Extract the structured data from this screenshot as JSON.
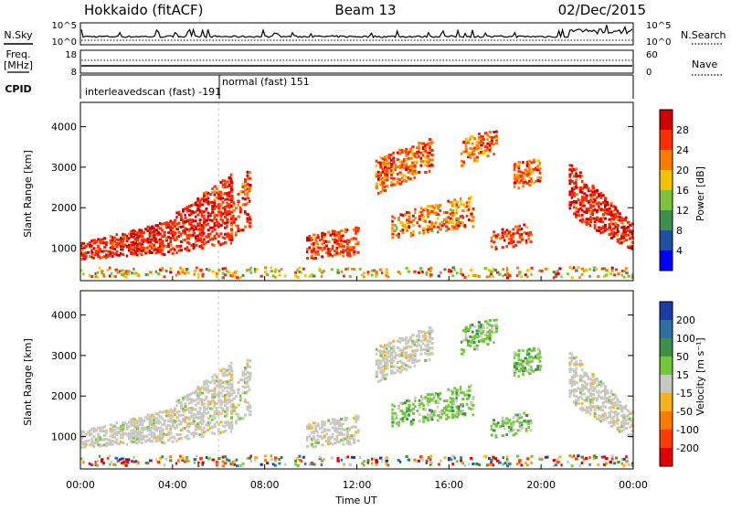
{
  "header": {
    "station": "Hokkaido (fitACF)",
    "beam": "Beam 13",
    "date": "02/Dec/2015"
  },
  "left_labels": {
    "nsky": "N.Sky",
    "freq": "Freq.",
    "freq_unit": "[MHz]",
    "cpid": "CPID"
  },
  "right_labels": {
    "nsearch": "N.Search",
    "nave": "Nave"
  },
  "cpid_labels": {
    "interleaved": "interleavedscan (fast) -191",
    "normal": "normal (fast) 151"
  },
  "chart_data": [
    {
      "type": "line",
      "name": "noise",
      "left_ticks": [
        "10^5",
        "10^0"
      ],
      "right_ticks": [
        "10^5",
        "10^0"
      ]
    },
    {
      "type": "line",
      "name": "frequency",
      "left_ticks": [
        "18",
        "8"
      ],
      "right_ticks": [
        "60",
        "0"
      ]
    },
    {
      "type": "heatmap",
      "name": "power",
      "ylabel": "Slant Range [km]",
      "yticks": [
        1000,
        2000,
        3000,
        4000
      ],
      "ylim": [
        200,
        4600
      ],
      "xlim": [
        0,
        24
      ],
      "colorbar_label": "Power [dB]",
      "colorbar_ticks": [
        "28",
        "24",
        "20",
        "16",
        "12",
        "8",
        "4"
      ],
      "colors": [
        "#d10000",
        "#ff2d00",
        "#ff7a00",
        "#f3c200",
        "#7ec23a",
        "#3d8f4b",
        "#1e4fa0",
        "#0000ff"
      ]
    },
    {
      "type": "heatmap",
      "name": "velocity",
      "ylabel": "Slant Range [km]",
      "yticks": [
        1000,
        2000,
        3000,
        4000
      ],
      "ylim": [
        200,
        4600
      ],
      "xlim": [
        0,
        24
      ],
      "colorbar_label": "Velocity [m s⁻¹]",
      "colorbar_ticks": [
        "200",
        "100",
        "50",
        "15",
        "-15",
        "-50",
        "-100",
        "-200"
      ],
      "colors": [
        "#1e3ca8",
        "#2c6fa5",
        "#3d8f4b",
        "#73c73a",
        "#c8c8c0",
        "#f6b21a",
        "#ff7a00",
        "#ff3c00",
        "#e00000"
      ],
      "xlabel": "Time UT",
      "xticks": [
        "00:00",
        "04:00",
        "08:00",
        "12:00",
        "16:00",
        "20:00",
        "00:00"
      ]
    }
  ]
}
